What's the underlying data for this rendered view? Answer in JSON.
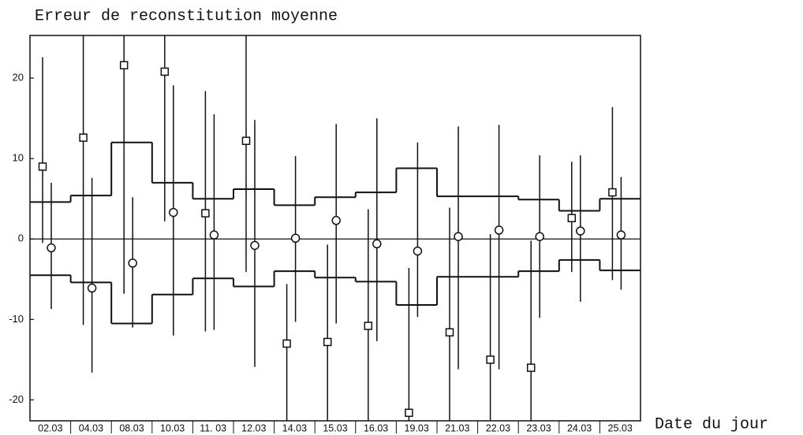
{
  "chart_data": {
    "type": "errorbar",
    "title": "Erreur de reconstitution moyenne",
    "x_label": "Date du jour",
    "categories": [
      "02.03",
      "04.03",
      "08.03",
      "10.03",
      "11. 03",
      "12.03",
      "14.03",
      "15.03",
      "16.03",
      "19.03",
      "21.03",
      "22.03",
      "23.03",
      "24.03",
      "25.03"
    ],
    "squares": {
      "values": [
        9.0,
        12.6,
        21.6,
        20.8,
        3.2,
        12.2,
        -13.0,
        -12.8,
        -10.8,
        -21.6,
        -11.6,
        -15.0,
        -16.0,
        2.6,
        5.8
      ],
      "low": [
        -0.5,
        -10.7,
        -6.8,
        2.2,
        -11.5,
        -4.1,
        -22.6,
        -22.6,
        -22.6,
        -22.6,
        -22.6,
        -22.6,
        -22.6,
        -4.1,
        -5.1
      ],
      "high": [
        22.6,
        25.3,
        25.3,
        25.3,
        18.4,
        25.3,
        -5.6,
        -0.7,
        3.7,
        -3.6,
        3.9,
        0.6,
        -0.2,
        9.6,
        16.4
      ]
    },
    "circles": {
      "values": [
        -1.1,
        -6.1,
        -3.0,
        3.3,
        0.5,
        -0.8,
        0.1,
        2.3,
        -0.6,
        -1.5,
        0.3,
        1.1,
        0.3,
        1.0,
        0.5
      ],
      "low": [
        -8.7,
        -16.6,
        -11.0,
        -12.0,
        -11.3,
        -15.9,
        -10.3,
        -10.5,
        -12.7,
        -9.7,
        -16.2,
        -16.2,
        -9.8,
        -7.8,
        -6.3
      ],
      "high": [
        7.0,
        7.6,
        5.2,
        19.1,
        15.5,
        14.8,
        10.3,
        14.3,
        15.0,
        12.0,
        14.0,
        14.2,
        10.4,
        10.4,
        7.7
      ]
    },
    "envelope": {
      "upper": [
        4.6,
        5.4,
        12.0,
        7.0,
        5.0,
        6.2,
        4.2,
        5.2,
        5.8,
        8.8,
        5.3,
        5.3,
        4.9,
        3.5,
        5.0
      ],
      "lower": [
        -4.5,
        -5.4,
        -10.5,
        -6.9,
        -4.9,
        -5.9,
        -4.0,
        -4.8,
        -5.3,
        -8.2,
        -4.7,
        -4.7,
        -4.0,
        -2.6,
        -3.9
      ]
    },
    "color": "#111111",
    "ylim": [
      -22.6,
      25.3
    ],
    "yticks": [
      20,
      10,
      0,
      -10,
      -20
    ]
  }
}
